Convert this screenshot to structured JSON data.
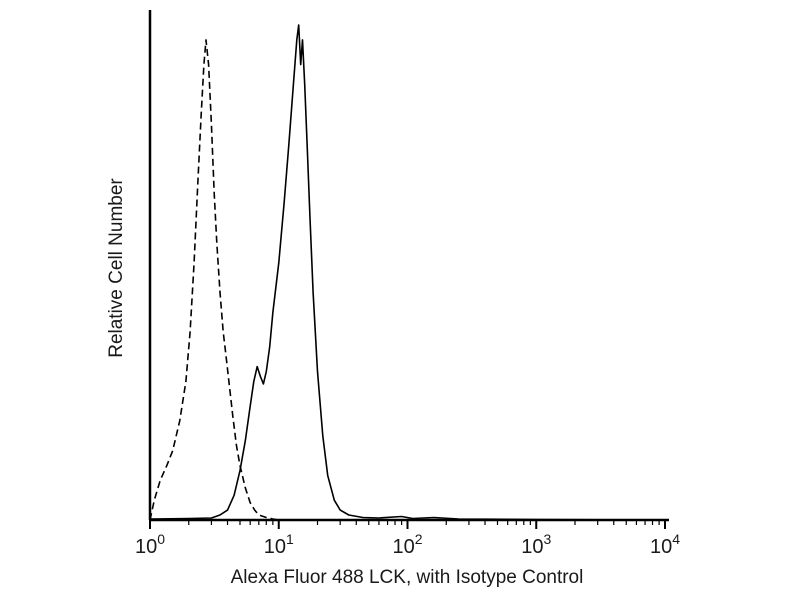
{
  "page": {
    "background": "#ffffff",
    "description": "Flow cytometry overlay histogram"
  },
  "chart_data": {
    "type": "line",
    "subtype": "flow-cytometry-histogram",
    "title": "",
    "xlabel": "Alexa Fluor 488 LCK, with Isotype Control",
    "ylabel": "Relative Cell Number",
    "x_scale": "log",
    "xlim": [
      1,
      10000
    ],
    "ylim": [
      0,
      100
    ],
    "grid": false,
    "legend": "none",
    "y_ticks": "none",
    "x_tick_values": [
      1,
      10,
      100,
      1000,
      10000
    ],
    "x_tick_labels": [
      {
        "base": "10",
        "exp": "0"
      },
      {
        "base": "10",
        "exp": "1"
      },
      {
        "base": "10",
        "exp": "2"
      },
      {
        "base": "10",
        "exp": "3"
      },
      {
        "base": "10",
        "exp": "4"
      }
    ],
    "axis_color": "#000000",
    "series": [
      {
        "name": "Isotype Control",
        "line_style": "dashed",
        "color": "#000000",
        "points": [
          [
            1.0,
            0
          ],
          [
            1.08,
            4
          ],
          [
            1.2,
            8
          ],
          [
            1.35,
            11
          ],
          [
            1.5,
            14
          ],
          [
            1.7,
            20
          ],
          [
            1.9,
            28
          ],
          [
            2.05,
            38
          ],
          [
            2.2,
            52
          ],
          [
            2.35,
            68
          ],
          [
            2.5,
            82
          ],
          [
            2.62,
            92
          ],
          [
            2.72,
            97
          ],
          [
            2.85,
            92
          ],
          [
            3.0,
            80
          ],
          [
            3.15,
            66
          ],
          [
            3.3,
            56
          ],
          [
            3.5,
            46
          ],
          [
            3.7,
            38
          ],
          [
            3.9,
            33
          ],
          [
            4.1,
            28
          ],
          [
            4.4,
            21
          ],
          [
            4.7,
            15
          ],
          [
            5.0,
            11
          ],
          [
            5.5,
            6.5
          ],
          [
            6.0,
            3.5
          ],
          [
            6.5,
            2
          ],
          [
            7.0,
            1
          ],
          [
            8.0,
            0.5
          ],
          [
            9.0,
            0.2
          ],
          [
            10.0,
            0
          ]
        ]
      },
      {
        "name": "Alexa Fluor 488 LCK",
        "line_style": "solid",
        "color": "#000000",
        "points": [
          [
            1.0,
            0.2
          ],
          [
            2.0,
            0.3
          ],
          [
            3.0,
            0.4
          ],
          [
            3.5,
            1
          ],
          [
            4.0,
            2
          ],
          [
            4.5,
            5
          ],
          [
            5.0,
            10
          ],
          [
            5.5,
            16
          ],
          [
            6.0,
            23
          ],
          [
            6.4,
            28
          ],
          [
            6.8,
            31
          ],
          [
            7.2,
            29
          ],
          [
            7.6,
            27.5
          ],
          [
            8.0,
            30
          ],
          [
            8.5,
            35
          ],
          [
            9.0,
            42
          ],
          [
            10.0,
            52
          ],
          [
            11.0,
            64
          ],
          [
            12.0,
            76
          ],
          [
            13.0,
            88
          ],
          [
            13.8,
            97
          ],
          [
            14.3,
            100
          ],
          [
            14.8,
            92
          ],
          [
            15.3,
            97
          ],
          [
            15.9,
            88
          ],
          [
            16.6,
            76
          ],
          [
            17.5,
            61
          ],
          [
            18.5,
            46
          ],
          [
            20.0,
            30
          ],
          [
            22.0,
            17
          ],
          [
            24.0,
            9
          ],
          [
            27.0,
            4
          ],
          [
            30.0,
            2
          ],
          [
            35.0,
            1
          ],
          [
            45.0,
            0.5
          ],
          [
            60.0,
            0.4
          ],
          [
            90.0,
            0.7
          ],
          [
            110.0,
            0.3
          ],
          [
            160.0,
            0.5
          ],
          [
            250.0,
            0.2
          ],
          [
            1000.0,
            0.1
          ],
          [
            10000.0,
            0
          ]
        ]
      }
    ]
  }
}
